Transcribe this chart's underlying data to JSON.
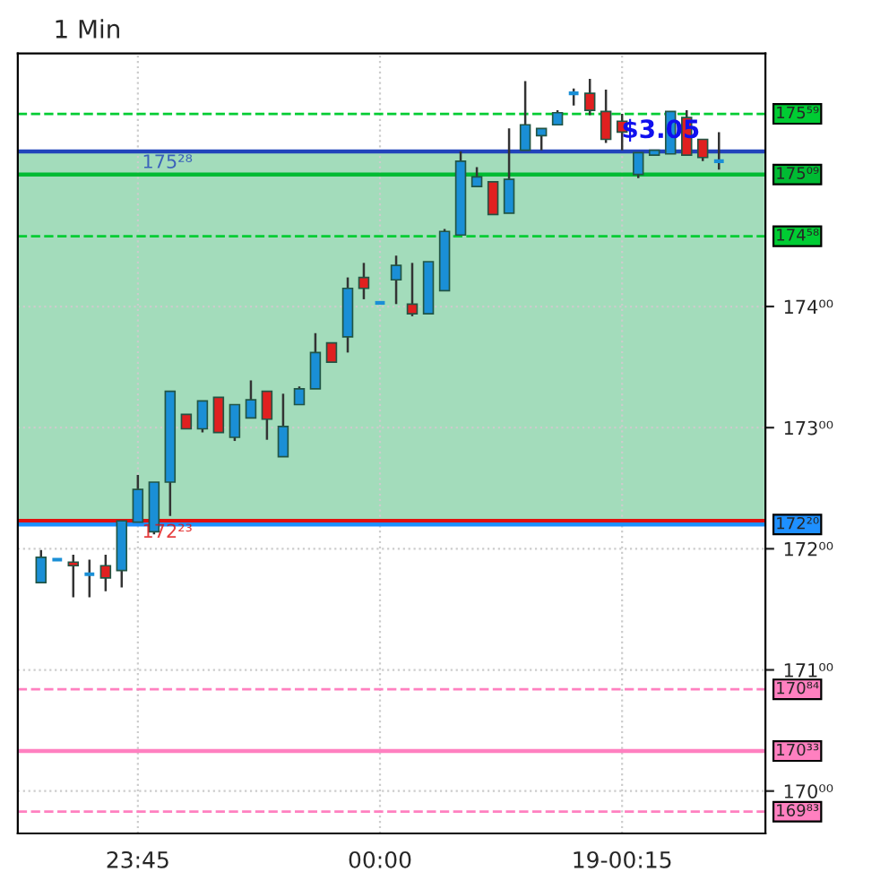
{
  "chart_data": {
    "type": "candlestick",
    "title": "1 Min",
    "x": [
      23.65,
      23.6667,
      23.6833,
      23.7,
      23.7167,
      23.7333,
      23.75,
      23.7667,
      23.7833,
      23.8,
      23.8167,
      23.8333,
      23.85,
      23.8667,
      23.8833,
      23.9,
      23.9167,
      23.9333,
      23.95,
      23.9667,
      23.9833,
      24,
      24.0167,
      24.0333,
      24.05,
      24.0667,
      24.0833,
      24.1,
      24.1167,
      24.1333,
      24.15,
      24.1667,
      24.1833,
      24.2,
      24.2167,
      24.2333,
      24.25,
      24.2667,
      24.2833,
      24.3,
      24.3167,
      24.3333,
      24.35
    ],
    "ohlc": [
      [
        171.72,
        171.99,
        171.72,
        171.93
      ],
      [
        171.91,
        171.91,
        171.91,
        171.91
      ],
      [
        171.89,
        171.95,
        171.6,
        171.86
      ],
      [
        171.79,
        171.91,
        171.6,
        171.79
      ],
      [
        171.86,
        171.95,
        171.65,
        171.76
      ],
      [
        171.82,
        172.23,
        171.68,
        172.23
      ],
      [
        172.22,
        172.61,
        172.22,
        172.49
      ],
      [
        172.14,
        172.55,
        172.12,
        172.55
      ],
      [
        172.55,
        173.3,
        172.27,
        173.3
      ],
      [
        173.11,
        173.11,
        172.99,
        172.99
      ],
      [
        172.99,
        173.22,
        172.96,
        173.22
      ],
      [
        173.25,
        173.25,
        172.96,
        172.96
      ],
      [
        172.92,
        173.19,
        172.89,
        173.19
      ],
      [
        173.08,
        173.39,
        173.08,
        173.23
      ],
      [
        173.3,
        173.3,
        172.9,
        173.07
      ],
      [
        172.76,
        173.28,
        172.76,
        173.01
      ],
      [
        173.19,
        173.34,
        173.19,
        173.32
      ],
      [
        173.32,
        173.78,
        173.32,
        173.62
      ],
      [
        173.7,
        173.7,
        173.54,
        173.54
      ],
      [
        173.75,
        174.24,
        173.62,
        174.15
      ],
      [
        174.24,
        174.36,
        174.06,
        174.15
      ],
      [
        174.03,
        174.03,
        174.03,
        174.03
      ],
      [
        174.22,
        174.42,
        174.02,
        174.34
      ],
      [
        174.02,
        174.36,
        173.92,
        173.94
      ],
      [
        173.94,
        174.37,
        173.94,
        174.37
      ],
      [
        174.13,
        174.64,
        174.13,
        174.62
      ],
      [
        174.59,
        175.28,
        174.59,
        175.2
      ],
      [
        174.99,
        175.15,
        174.99,
        175.07
      ],
      [
        175.03,
        175.03,
        174.76,
        174.76
      ],
      [
        174.77,
        175.47,
        174.77,
        175.05
      ],
      [
        175.29,
        175.86,
        175.29,
        175.5
      ],
      [
        175.41,
        175.47,
        175.29,
        175.47
      ],
      [
        175.5,
        175.62,
        175.5,
        175.6
      ],
      [
        175.76,
        175.8,
        175.66,
        175.76
      ],
      [
        175.76,
        175.88,
        175.58,
        175.62
      ],
      [
        175.61,
        175.79,
        175.35,
        175.38
      ],
      [
        175.53,
        175.59,
        175.29,
        175.44
      ],
      [
        175.09,
        175.27,
        175.06,
        175.27
      ],
      [
        175.25,
        175.29,
        175.25,
        175.29
      ],
      [
        175.26,
        175.61,
        175.26,
        175.61
      ],
      [
        175.56,
        175.62,
        175.25,
        175.25
      ],
      [
        175.38,
        175.38,
        175.2,
        175.23
      ],
      [
        175.2,
        175.44,
        175.13,
        175.2
      ]
    ],
    "xlim": [
      23.626,
      24.398
    ],
    "xticks": [
      {
        "value": 23.75,
        "label": "23:45"
      },
      {
        "value": 24,
        "label": "00:00"
      },
      {
        "value": 24.25,
        "label": "19-00:15"
      }
    ],
    "ylim": [
      169.65,
      176.09
    ],
    "yticks": [
      {
        "value": 170,
        "label": "170⁰⁰"
      },
      {
        "value": 171,
        "label": "171⁰⁰"
      },
      {
        "value": 172,
        "label": "172⁰⁰"
      },
      {
        "value": 173,
        "label": "173⁰⁰"
      },
      {
        "value": 174,
        "label": "174⁰⁰"
      }
    ],
    "grid": true,
    "ref_lines": [
      {
        "axis": "y",
        "value": 175.59,
        "label": "175⁵⁹",
        "color": "#00cc33",
        "line_style": "dashed"
      },
      {
        "axis": "y",
        "value": 175.09,
        "label": "175⁰⁹",
        "color": "#00bb33",
        "line_style": "solid"
      },
      {
        "axis": "y",
        "value": 174.58,
        "label": "174⁵⁸",
        "color": "#00cc33",
        "line_style": "dashed"
      },
      {
        "axis": "y",
        "value": 175.28,
        "label": "175²⁸",
        "color": "#2244bb",
        "line_style": "solid"
      },
      {
        "axis": "y",
        "value": 172.23,
        "label": "172²³",
        "color": "#e01010",
        "line_style": "solid"
      },
      {
        "axis": "y",
        "value": 172.2,
        "label": "172²⁰",
        "color": "#1e90ff",
        "line_style": "solid"
      },
      {
        "axis": "y",
        "value": 170.84,
        "label": "170⁸⁴",
        "color": "#ff80c0",
        "line_style": "dashed"
      },
      {
        "axis": "y",
        "value": 170.33,
        "label": "170³³",
        "color": "#ff80c0",
        "line_style": "solid"
      },
      {
        "axis": "y",
        "value": 169.83,
        "label": "169⁸³",
        "color": "#ff80c0",
        "line_style": "dashed"
      }
    ],
    "bands": [
      {
        "axis": "y",
        "from": 172.23,
        "to": 175.28,
        "color": "#99d8b4"
      }
    ],
    "annotations": [
      "$3.05"
    ]
  }
}
